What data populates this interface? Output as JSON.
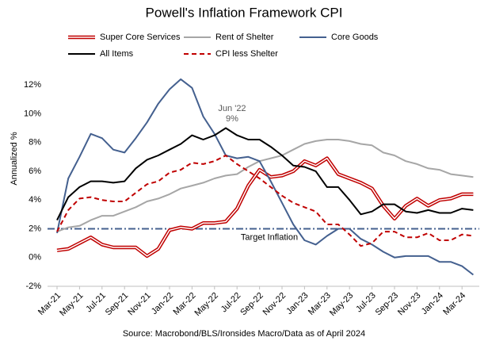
{
  "chart_data": {
    "type": "line",
    "title": "Powell's Inflation Framework CPI",
    "y_label": "Annualized %",
    "source": "Source: Macrobond/BLS/Ironsides Macro/Data as of April 2024",
    "categories": [
      "Mar-21",
      null,
      "May-21",
      null,
      "Jul-21",
      null,
      "Sep-21",
      null,
      "Nov-21",
      null,
      "Jan-22",
      null,
      "Mar-22",
      null,
      "May-22",
      null,
      "Jul-22",
      null,
      "Sep-22",
      null,
      "Nov-22",
      null,
      "Jan-23",
      null,
      "Mar-23",
      null,
      "May-23",
      null,
      "Jul-23",
      null,
      "Sep-23",
      null,
      "Nov-23",
      null,
      "Jan-24",
      null,
      "Mar-24",
      null
    ],
    "series": [
      {
        "name": "Super Core Services",
        "color": "#c00000",
        "style": "double",
        "values": [
          0.5,
          0.6,
          1.0,
          1.4,
          0.9,
          0.7,
          0.7,
          0.7,
          0.1,
          0.6,
          1.9,
          2.1,
          2.0,
          2.4,
          2.4,
          2.5,
          3.4,
          5.0,
          6.1,
          5.6,
          5.7,
          6.0,
          6.7,
          6.4,
          6.9,
          5.8,
          5.5,
          5.2,
          4.8,
          3.6,
          2.7,
          3.6,
          4.1,
          3.6,
          4.0,
          4.1,
          4.4,
          4.4
        ]
      },
      {
        "name": "Rent of Shelter",
        "color": "#a6a6a6",
        "style": "solid",
        "values": [
          1.8,
          2.1,
          2.2,
          2.6,
          2.9,
          2.9,
          3.2,
          3.5,
          3.9,
          4.1,
          4.4,
          4.8,
          5.0,
          5.2,
          5.5,
          5.7,
          5.8,
          6.3,
          6.7,
          6.9,
          7.1,
          7.5,
          7.9,
          8.1,
          8.2,
          8.2,
          8.1,
          7.9,
          7.8,
          7.3,
          7.1,
          6.7,
          6.5,
          6.2,
          6.1,
          5.8,
          5.7,
          5.6
        ]
      },
      {
        "name": "Core Goods",
        "color": "#44608f",
        "style": "solid",
        "values": [
          1.7,
          5.5,
          7.0,
          8.6,
          8.3,
          7.5,
          7.3,
          8.3,
          9.4,
          10.7,
          11.7,
          12.4,
          11.8,
          9.8,
          8.6,
          7.1,
          6.9,
          7.0,
          6.7,
          5.3,
          3.8,
          2.3,
          1.2,
          0.9,
          1.5,
          2.0,
          2.0,
          1.3,
          0.9,
          0.4,
          0.0,
          0.1,
          0.1,
          0.1,
          -0.3,
          -0.3,
          -0.6,
          -1.2
        ]
      },
      {
        "name": "All Items",
        "color": "#000000",
        "style": "solid",
        "values": [
          2.6,
          4.2,
          4.9,
          5.3,
          5.3,
          5.2,
          5.3,
          6.2,
          6.8,
          7.1,
          7.5,
          7.9,
          8.5,
          8.2,
          8.5,
          9.0,
          8.5,
          8.2,
          8.2,
          7.7,
          7.1,
          6.4,
          6.3,
          6.0,
          4.9,
          4.9,
          4.0,
          3.0,
          3.2,
          3.7,
          3.7,
          3.2,
          3.1,
          3.3,
          3.1,
          3.1,
          3.4,
          3.3
        ]
      },
      {
        "name": "CPI less Shelter",
        "color": "#c00000",
        "style": "dashed",
        "values": [
          1.8,
          3.3,
          4.1,
          4.2,
          4.0,
          3.9,
          3.9,
          4.5,
          5.1,
          5.3,
          5.9,
          6.1,
          6.6,
          6.5,
          6.7,
          7.1,
          6.5,
          6.0,
          5.5,
          4.9,
          4.3,
          3.8,
          3.5,
          3.2,
          2.3,
          2.3,
          1.6,
          0.8,
          1.0,
          1.8,
          1.8,
          1.4,
          1.4,
          1.7,
          1.2,
          1.2,
          1.6,
          1.5
        ]
      }
    ],
    "reference_lines": [
      {
        "value": 2,
        "label": "Target Inflation",
        "color": "#44608f"
      }
    ],
    "annotations": [
      {
        "text": "Jun '22"
      },
      {
        "text": "9%"
      }
    ],
    "ylim": [
      -2,
      13
    ],
    "yticks": [
      {
        "value": -2,
        "label": "-2%"
      },
      {
        "value": 0,
        "label": "0%"
      },
      {
        "value": 2,
        "label": "2%"
      },
      {
        "value": 4,
        "label": "4%"
      },
      {
        "value": 6,
        "label": "6%"
      },
      {
        "value": 8,
        "label": "8%"
      },
      {
        "value": 10,
        "label": "10%"
      },
      {
        "value": 12,
        "label": "12%"
      }
    ],
    "grid": false
  }
}
